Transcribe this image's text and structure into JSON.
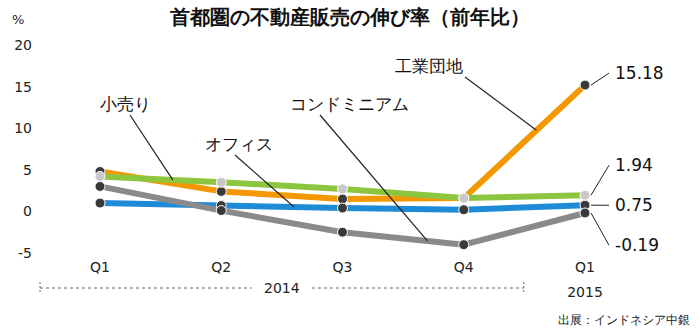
{
  "chart_data": {
    "type": "line",
    "title": "首都圏の不動産販売の伸び率（前年比）",
    "y_label": "%",
    "source": "出展：インドネシア中銀",
    "categories": [
      "Q1",
      "Q2",
      "Q3",
      "Q4",
      "Q1"
    ],
    "category_groups": [
      {
        "label": "2014",
        "start": 0,
        "end": 3
      },
      {
        "label": "2015",
        "start": 4,
        "end": 4
      }
    ],
    "ylim": [
      -5,
      20
    ],
    "yticks": [
      -5,
      0,
      5,
      10,
      15,
      20
    ],
    "grid": false,
    "data_labels": true,
    "series": [
      {
        "name": "工業団地",
        "color": "#f39800",
        "marker": "dark",
        "values": [
          4.8,
          2.4,
          1.5,
          1.6,
          15.18
        ],
        "value_labels": [
          null,
          null,
          null,
          null,
          "15.18"
        ]
      },
      {
        "name": "小売り",
        "color": "#8cc63e",
        "marker": "light",
        "values": [
          4.2,
          3.5,
          2.7,
          1.6,
          1.94
        ],
        "value_labels": [
          null,
          null,
          null,
          null,
          "1.94"
        ]
      },
      {
        "name": "オフィス",
        "color": "#1e8bd6",
        "marker": "dark",
        "values": [
          1.0,
          0.7,
          0.4,
          0.2,
          0.75
        ],
        "value_labels": [
          null,
          null,
          null,
          null,
          "0.75"
        ]
      },
      {
        "name": "コンドミニアム",
        "color": "#8a8a8a",
        "marker": "dark",
        "values": [
          3.0,
          0.1,
          -2.5,
          -4.0,
          -0.19
        ],
        "value_labels": [
          null,
          null,
          null,
          null,
          "-0.19"
        ]
      }
    ]
  }
}
